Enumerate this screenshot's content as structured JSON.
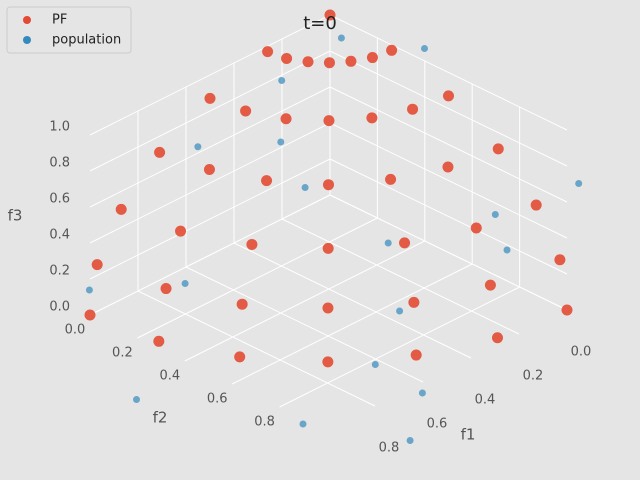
{
  "chart_data": {
    "type": "scatter3d",
    "title": "t=0",
    "xlabel": "f1",
    "ylabel": "f2",
    "zlabel": "f3",
    "xlim": [
      0,
      1
    ],
    "ylim": [
      0,
      1
    ],
    "zlim": [
      0,
      1
    ],
    "xticks": [
      {
        "value": 0,
        "label": "0.0"
      },
      0.2,
      0.4,
      0.6,
      0.8
    ],
    "yticks": [
      {
        "value": 0,
        "label": "0.0"
      },
      0.2,
      0.4,
      0.6,
      0.8
    ],
    "zticks": [
      {
        "value": 0,
        "label": "0.0"
      },
      0.2,
      0.4,
      0.6,
      0.8,
      {
        "value": 1,
        "label": "1.0"
      }
    ],
    "grid": true,
    "legend": "upper left",
    "series": [
      {
        "name": "PF",
        "color": "#e24a33",
        "x": [
          0,
          0.26,
          0.25,
          0.22,
          0.18,
          0.13,
          0.07,
          0,
          0.5,
          0.48,
          0.43,
          0.35,
          0.25,
          0.13,
          0,
          0.71,
          0.68,
          0.61,
          0.5,
          0.35,
          0.18,
          0,
          0.87,
          0.84,
          0.75,
          0.61,
          0.43,
          0.22,
          0,
          0.97,
          0.93,
          0.84,
          0.68,
          0.48,
          0.25,
          0,
          1,
          0.97,
          0.87,
          0.71,
          0.5,
          0.26,
          0
        ],
        "y": [
          0,
          0,
          0.07,
          0.13,
          0.18,
          0.22,
          0.25,
          0.26,
          0,
          0.13,
          0.25,
          0.35,
          0.43,
          0.48,
          0.5,
          0,
          0.18,
          0.35,
          0.5,
          0.61,
          0.68,
          0.71,
          0,
          0.22,
          0.43,
          0.61,
          0.75,
          0.84,
          0.87,
          0,
          0.25,
          0.48,
          0.68,
          0.84,
          0.93,
          0.97,
          0,
          0.26,
          0.5,
          0.71,
          0.87,
          0.97,
          1
        ],
        "z": [
          1,
          0.97,
          0.97,
          0.97,
          0.97,
          0.97,
          0.97,
          0.97,
          0.87,
          0.87,
          0.87,
          0.87,
          0.87,
          0.87,
          0.87,
          0.71,
          0.71,
          0.71,
          0.71,
          0.71,
          0.71,
          0.71,
          0.5,
          0.5,
          0.5,
          0.5,
          0.5,
          0.5,
          0.5,
          0.26,
          0.26,
          0.26,
          0.26,
          0.26,
          0.26,
          0.26,
          0,
          0,
          0,
          0,
          0,
          0,
          0
        ]
      },
      {
        "name": "population",
        "color": "#348abd",
        "x": [
          0.3,
          0.1,
          0.6,
          0.2,
          0.05,
          0.9,
          0.5,
          0.7,
          1.2,
          1.1,
          0.4,
          0.8,
          0.15,
          1.3,
          0.95,
          0.35,
          0.6,
          0.25
        ],
        "y": [
          0.1,
          0.5,
          0.05,
          0.9,
          1.1,
          0.3,
          0.8,
          0.9,
          0.2,
          1.0,
          0.3,
          1.2,
          0.2,
          0.5,
          1.3,
          0.6,
          0.4,
          1.0
        ],
        "z": [
          0.9,
          1.2,
          0.7,
          0.6,
          0.8,
          0.3,
          0.2,
          0.1,
          0.4,
          0.1,
          0.5,
          0.2,
          1.1,
          0.05,
          0.1,
          0.35,
          0.95,
          0.5
        ]
      }
    ]
  }
}
